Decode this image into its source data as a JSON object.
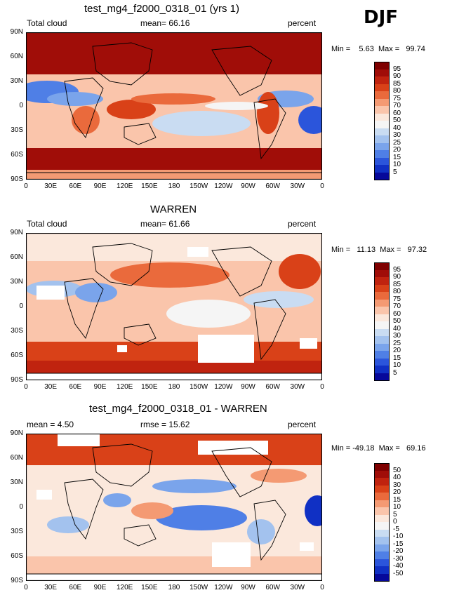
{
  "season": "DJF",
  "panels": [
    {
      "title": "test_mg4_f2000_0318_01 (yrs 1)",
      "left_label": "Total cloud",
      "stat_label": "mean=  66.16",
      "units": "percent",
      "minmax": "Min =    5.63  Max =   99.74",
      "colorbar": {
        "levels": [
          "95",
          "90",
          "85",
          "80",
          "75",
          "70",
          "60",
          "50",
          "40",
          "30",
          "25",
          "20",
          "15",
          "10",
          "5"
        ],
        "colors": [
          "#7f0000",
          "#a00d08",
          "#c0230f",
          "#d94118",
          "#ea6a3c",
          "#f49a73",
          "#fac5ab",
          "#fbe8dc",
          "#f5f5f5",
          "#c9dcf2",
          "#a3c2ee",
          "#7aa4eb",
          "#4f7fe6",
          "#2b55db",
          "#1030c4",
          "#06089a"
        ]
      }
    },
    {
      "title": "WARREN",
      "left_label": "Total cloud",
      "stat_label": "mean=  61.66",
      "units": "percent",
      "minmax": "Min =   11.13  Max =   97.32",
      "colorbar": {
        "levels": [
          "95",
          "90",
          "85",
          "80",
          "75",
          "70",
          "60",
          "50",
          "40",
          "30",
          "25",
          "20",
          "15",
          "10",
          "5"
        ],
        "colors": [
          "#7f0000",
          "#a00d08",
          "#c0230f",
          "#d94118",
          "#ea6a3c",
          "#f49a73",
          "#fac5ab",
          "#fbe8dc",
          "#f5f5f5",
          "#c9dcf2",
          "#a3c2ee",
          "#7aa4eb",
          "#4f7fe6",
          "#2b55db",
          "#1030c4",
          "#06089a"
        ]
      }
    },
    {
      "title": "test_mg4_f2000_0318_01 - WARREN",
      "left_label": "mean =    4.50",
      "stat_label": "rmse =   15.62",
      "units": "percent",
      "minmax": "Min = -49.18  Max =   69.16",
      "colorbar": {
        "levels": [
          "50",
          "40",
          "30",
          "20",
          "15",
          "10",
          "5",
          "0",
          "-5",
          "-10",
          "-15",
          "-20",
          "-30",
          "-40",
          "-50"
        ],
        "colors": [
          "#7f0000",
          "#a00d08",
          "#c0230f",
          "#d94118",
          "#ea6a3c",
          "#f49a73",
          "#fac5ab",
          "#fbe8dc",
          "#f5f5f5",
          "#c9dcf2",
          "#a3c2ee",
          "#7aa4eb",
          "#4f7fe6",
          "#2b55db",
          "#1030c4",
          "#06089a"
        ]
      }
    }
  ],
  "lat_ticks": [
    "90N",
    "60N",
    "30N",
    "0",
    "30S",
    "60S",
    "90S"
  ],
  "lon_ticks": [
    "0",
    "30E",
    "60E",
    "90E",
    "120E",
    "150E",
    "180",
    "150W",
    "120W",
    "90W",
    "60W",
    "30W",
    "0"
  ]
}
